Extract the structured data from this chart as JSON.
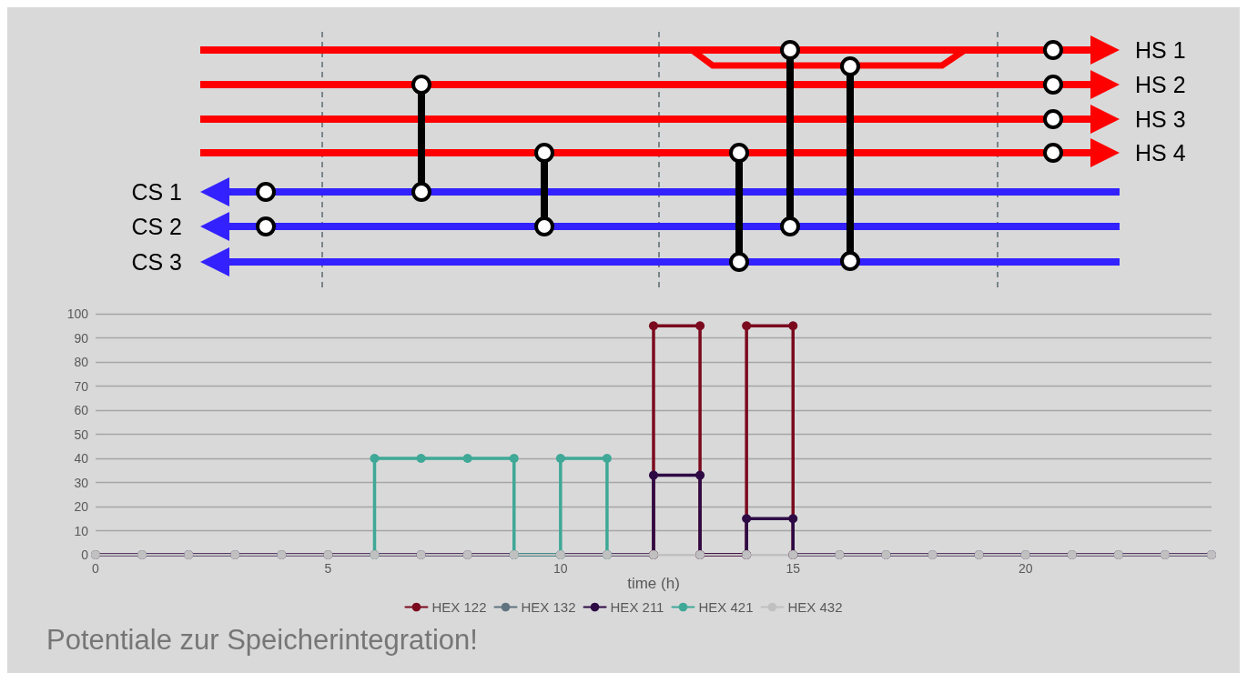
{
  "chart_data": {
    "type": "line",
    "title": "Potentiale zur Speicherintegration!",
    "xlabel": "time (h)",
    "annotations": [
      "HS 1",
      "HS 2",
      "HS 3",
      "HS 4",
      "CS 1",
      "CS 2",
      "CS 3"
    ],
    "xlim": [
      0,
      24
    ],
    "xticks": [
      0,
      5,
      10,
      15,
      20
    ],
    "ylim": [
      0,
      100
    ],
    "yticks": [
      0,
      10,
      20,
      30,
      40,
      50,
      60,
      70,
      80,
      90,
      100
    ],
    "grid": "y",
    "legend": "bottom",
    "marker": "circle",
    "line_style": "solid",
    "series": [
      {
        "name": "HEX 122",
        "color": "#7b0a1e",
        "x": [
          12,
          12,
          13,
          13,
          14,
          14,
          15,
          15
        ],
        "values": [
          0,
          95,
          95,
          0,
          0,
          95,
          95,
          0
        ]
      },
      {
        "name": "HEX 132",
        "color": "#607480"
      },
      {
        "name": "HEX 211",
        "color": "#2e0a45",
        "x": [
          0,
          1,
          2,
          3,
          4,
          5,
          6,
          7,
          8,
          9,
          10,
          11,
          12,
          12,
          13,
          13,
          14,
          14,
          15,
          15,
          16,
          17,
          18,
          19,
          20,
          21,
          22,
          23,
          24
        ],
        "values": [
          0,
          0,
          0,
          0,
          0,
          0,
          0,
          0,
          0,
          0,
          0,
          0,
          0,
          33,
          33,
          0,
          0,
          15,
          15,
          0,
          0,
          0,
          0,
          0,
          0,
          0,
          0,
          0,
          0
        ]
      },
      {
        "name": "HEX 421",
        "color": "#3fa897",
        "x": [
          6,
          6,
          7,
          8,
          9,
          9,
          10,
          10,
          11,
          11
        ],
        "values": [
          0,
          40,
          40,
          40,
          40,
          0,
          0,
          40,
          40,
          0
        ]
      },
      {
        "name": "HEX 432",
        "color": "#c0c0c0",
        "x": [
          0,
          1,
          2,
          3,
          4,
          5,
          6,
          7,
          8,
          9,
          10,
          11,
          12,
          13,
          14,
          15,
          16,
          17,
          18,
          19,
          20,
          21,
          22,
          23,
          24
        ],
        "values": [
          0,
          0,
          0,
          0,
          0,
          0,
          0,
          0,
          0,
          0,
          0,
          0,
          0,
          0,
          0,
          0,
          0,
          0,
          0,
          0,
          0,
          0,
          0,
          0,
          0
        ]
      }
    ]
  }
}
